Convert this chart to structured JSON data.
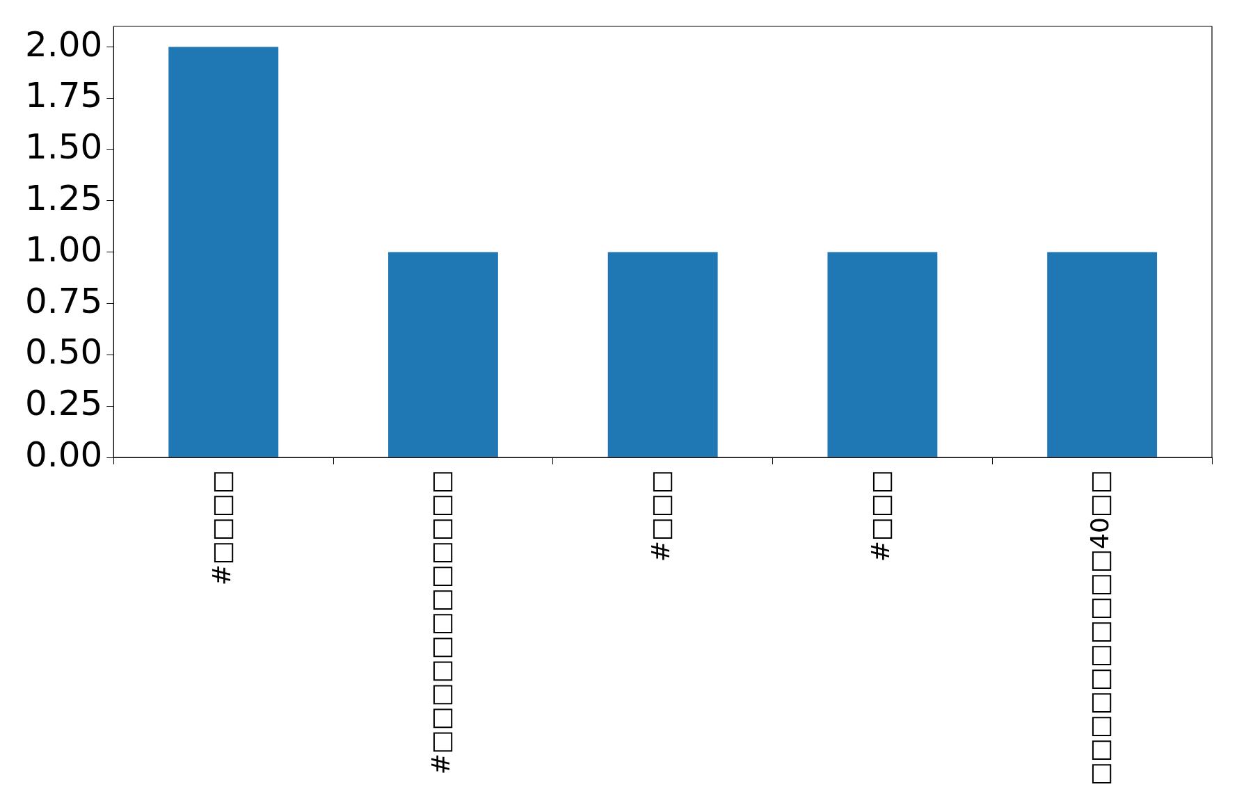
{
  "chart_data": {
    "type": "bar",
    "categories": [
      "#□□□□",
      "#□□□□□□□□□□□□",
      "#□□□",
      "#□□□",
      "□□□□□□□□□□40□□"
    ],
    "values": [
      2,
      1,
      1,
      1,
      1
    ],
    "color": "#1f77b4",
    "ylim": [
      0,
      2.1
    ],
    "yticks": [
      {
        "value": 0,
        "label": "0.00"
      },
      {
        "value": 0.25,
        "label": "0.25"
      },
      {
        "value": 0.5,
        "label": "0.50"
      },
      {
        "value": 0.75,
        "label": "0.75"
      },
      {
        "value": 1,
        "label": "1.00"
      },
      {
        "value": 1.25,
        "label": "1.25"
      },
      {
        "value": 1.5,
        "label": "1.50"
      },
      {
        "value": 1.75,
        "label": "1.75"
      },
      {
        "value": 2,
        "label": "2.00"
      }
    ],
    "grid": false,
    "legend": false
  }
}
